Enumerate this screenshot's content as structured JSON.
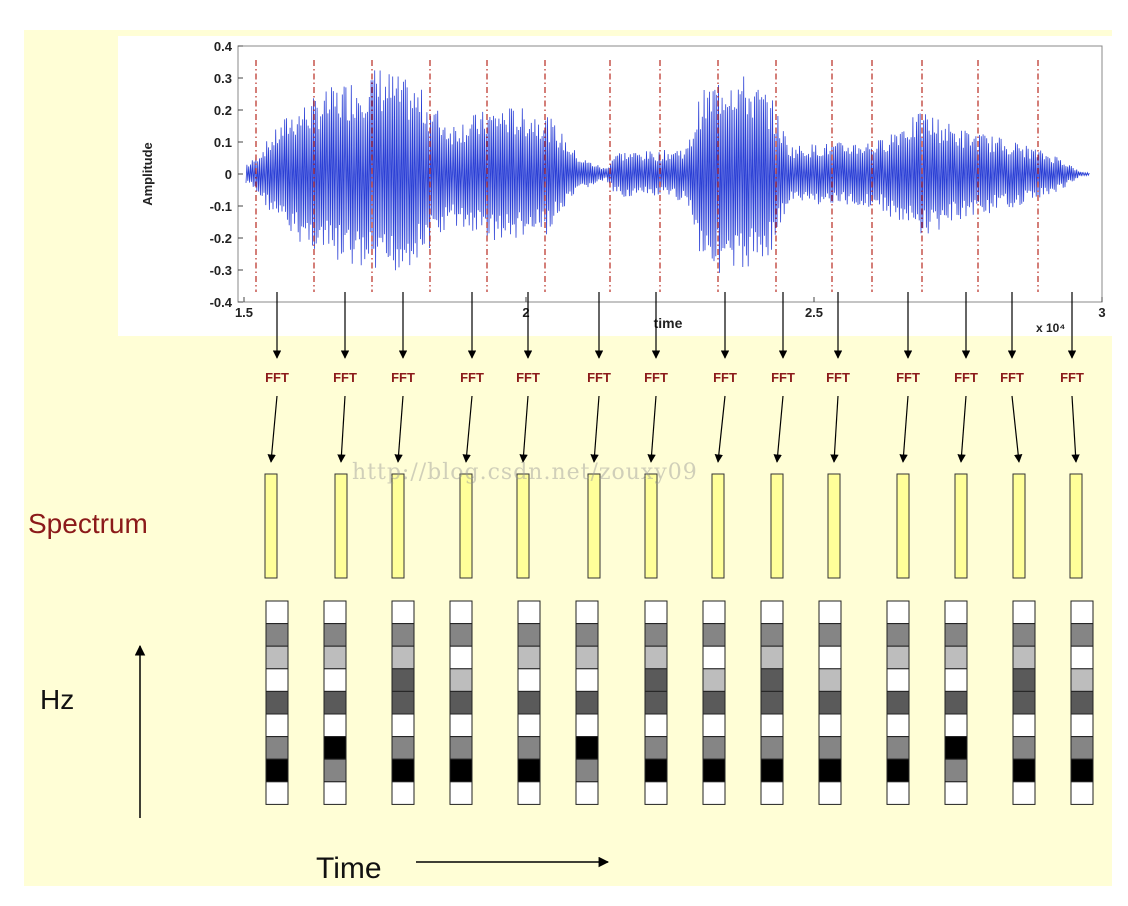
{
  "waveform": {
    "ylabel": "Amplitude",
    "xlabel": "time",
    "exponent": "x 10⁴",
    "y_ticks": [
      "0.4",
      "0.3",
      "0.2",
      "0.1",
      "0",
      "-0.1",
      "-0.2",
      "-0.3",
      "-0.4"
    ],
    "x_ticks": [
      "1.5",
      "2",
      "2.5",
      "3"
    ],
    "line_color": "#2a3fd6",
    "frame_color": "#b8281e"
  },
  "fft": {
    "label": "FFT",
    "count": 14,
    "label_color": "#8b1a1a"
  },
  "spectrum": {
    "label": "Spectrum",
    "fill": "#ffff99"
  },
  "spectrogram": {
    "columns": [
      [
        0,
        2,
        3,
        0,
        4,
        0,
        2,
        6,
        0
      ],
      [
        0,
        2,
        3,
        0,
        4,
        0,
        6,
        2,
        0
      ],
      [
        0,
        2,
        3,
        4,
        4,
        0,
        2,
        6,
        0
      ],
      [
        0,
        2,
        0,
        3,
        4,
        0,
        2,
        6,
        0
      ],
      [
        0,
        2,
        3,
        0,
        4,
        0,
        2,
        6,
        0
      ],
      [
        0,
        2,
        3,
        0,
        4,
        0,
        6,
        2,
        0
      ],
      [
        0,
        2,
        3,
        4,
        4,
        0,
        2,
        6,
        0
      ],
      [
        0,
        2,
        0,
        3,
        4,
        0,
        2,
        6,
        0
      ],
      [
        0,
        2,
        3,
        4,
        4,
        0,
        2,
        6,
        0
      ],
      [
        0,
        2,
        0,
        3,
        4,
        0,
        2,
        6,
        0
      ],
      [
        0,
        2,
        3,
        0,
        4,
        0,
        2,
        6,
        0
      ],
      [
        0,
        2,
        3,
        0,
        4,
        0,
        6,
        2,
        0
      ],
      [
        0,
        2,
        3,
        4,
        4,
        0,
        2,
        6,
        0
      ],
      [
        0,
        2,
        0,
        3,
        4,
        0,
        2,
        6,
        0
      ]
    ],
    "shade_colors": [
      "#ffffff",
      "#d4d4d4",
      "#858585",
      "#bdbdbd",
      "#5a5a5a",
      "#3a3a3a",
      "#000000"
    ]
  },
  "axes_labels": {
    "hz": "Hz",
    "time": "Time"
  },
  "watermark": "http://blog.csdn.net/zouxy09"
}
